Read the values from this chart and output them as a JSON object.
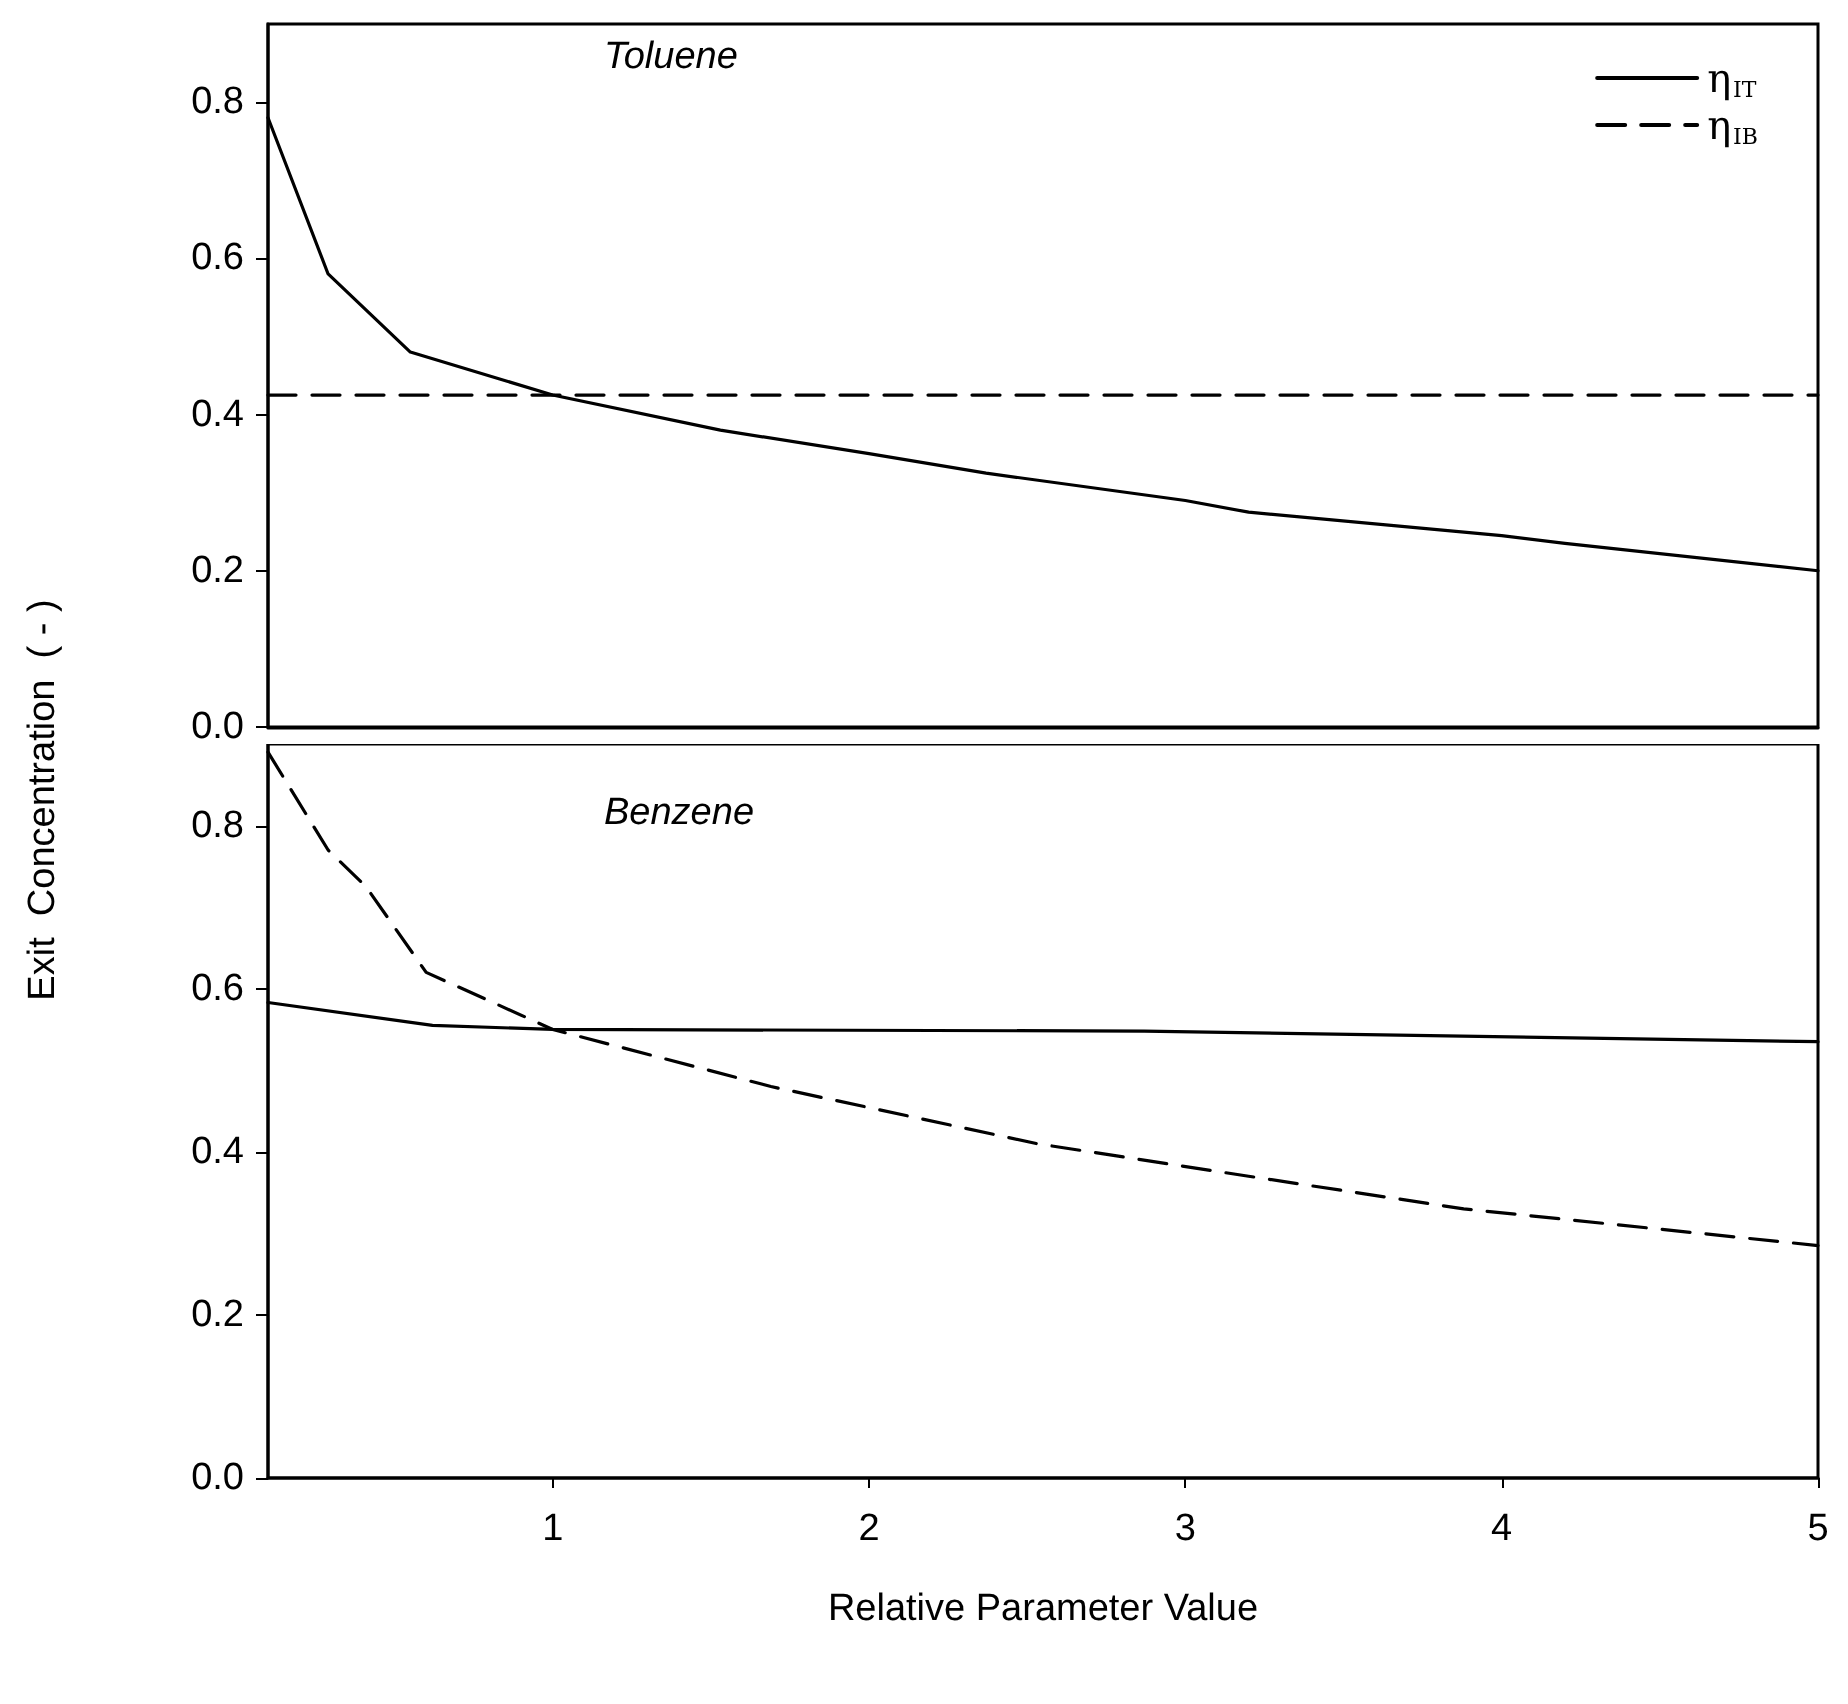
{
  "chart_data": [
    {
      "type": "line",
      "title": "Toluene",
      "ylabel": "Exit  Concentration  ( - )",
      "xlim": [
        0.1,
        5
      ],
      "ylim": [
        0,
        0.9
      ],
      "yticks": [
        {
          "value": 0,
          "label": "0.0"
        },
        0.2,
        0.4,
        0.6,
        0.8
      ],
      "tick_labels": "y",
      "grid": false,
      "legend": "top right",
      "marker": "none",
      "series": [
        {
          "name": "η$_{IT}$",
          "color": "#000000",
          "line_style": "solid",
          "x": [
            0.1,
            0.29,
            0.55,
            1.0,
            1.53,
            2.0,
            2.37,
            3.0,
            3.2,
            4.0,
            4.2,
            5.0
          ],
          "values": [
            0.78,
            0.58,
            0.48,
            0.425,
            0.38,
            0.35,
            0.325,
            0.29,
            0.275,
            0.245,
            0.235,
            0.2
          ]
        },
        {
          "name": "η$_{IB}$",
          "color": "#000000",
          "line_style": "dashed",
          "x": [
            0.1,
            5.0
          ],
          "values": [
            0.425,
            0.425
          ]
        }
      ]
    },
    {
      "type": "line",
      "title": "Benzene",
      "xlabel": "Relative Parameter Value",
      "xlim": [
        0.1,
        5
      ],
      "xticks": [
        1,
        2,
        3,
        4,
        5
      ],
      "ylim": [
        0,
        0.9
      ],
      "yticks": [
        {
          "value": 0,
          "label": "0.0"
        },
        0.2,
        0.4,
        0.6,
        0.8
      ],
      "grid": false,
      "legend": false,
      "marker": "none",
      "series": [
        {
          "color": "#000000",
          "line_style": "solid",
          "x": [
            0.1,
            0.62,
            1.0,
            2.87,
            5.0
          ],
          "values": [
            0.583,
            0.555,
            0.55,
            0.548,
            0.535
          ]
        },
        {
          "color": "#000000",
          "line_style": "dashed",
          "x": [
            0.1,
            0.29,
            0.41,
            0.6,
            1.0,
            1.69,
            2.53,
            3.2,
            3.88,
            5.0
          ],
          "values": [
            0.89,
            0.77,
            0.725,
            0.62,
            0.55,
            0.48,
            0.41,
            0.37,
            0.33,
            0.285
          ]
        }
      ]
    }
  ]
}
